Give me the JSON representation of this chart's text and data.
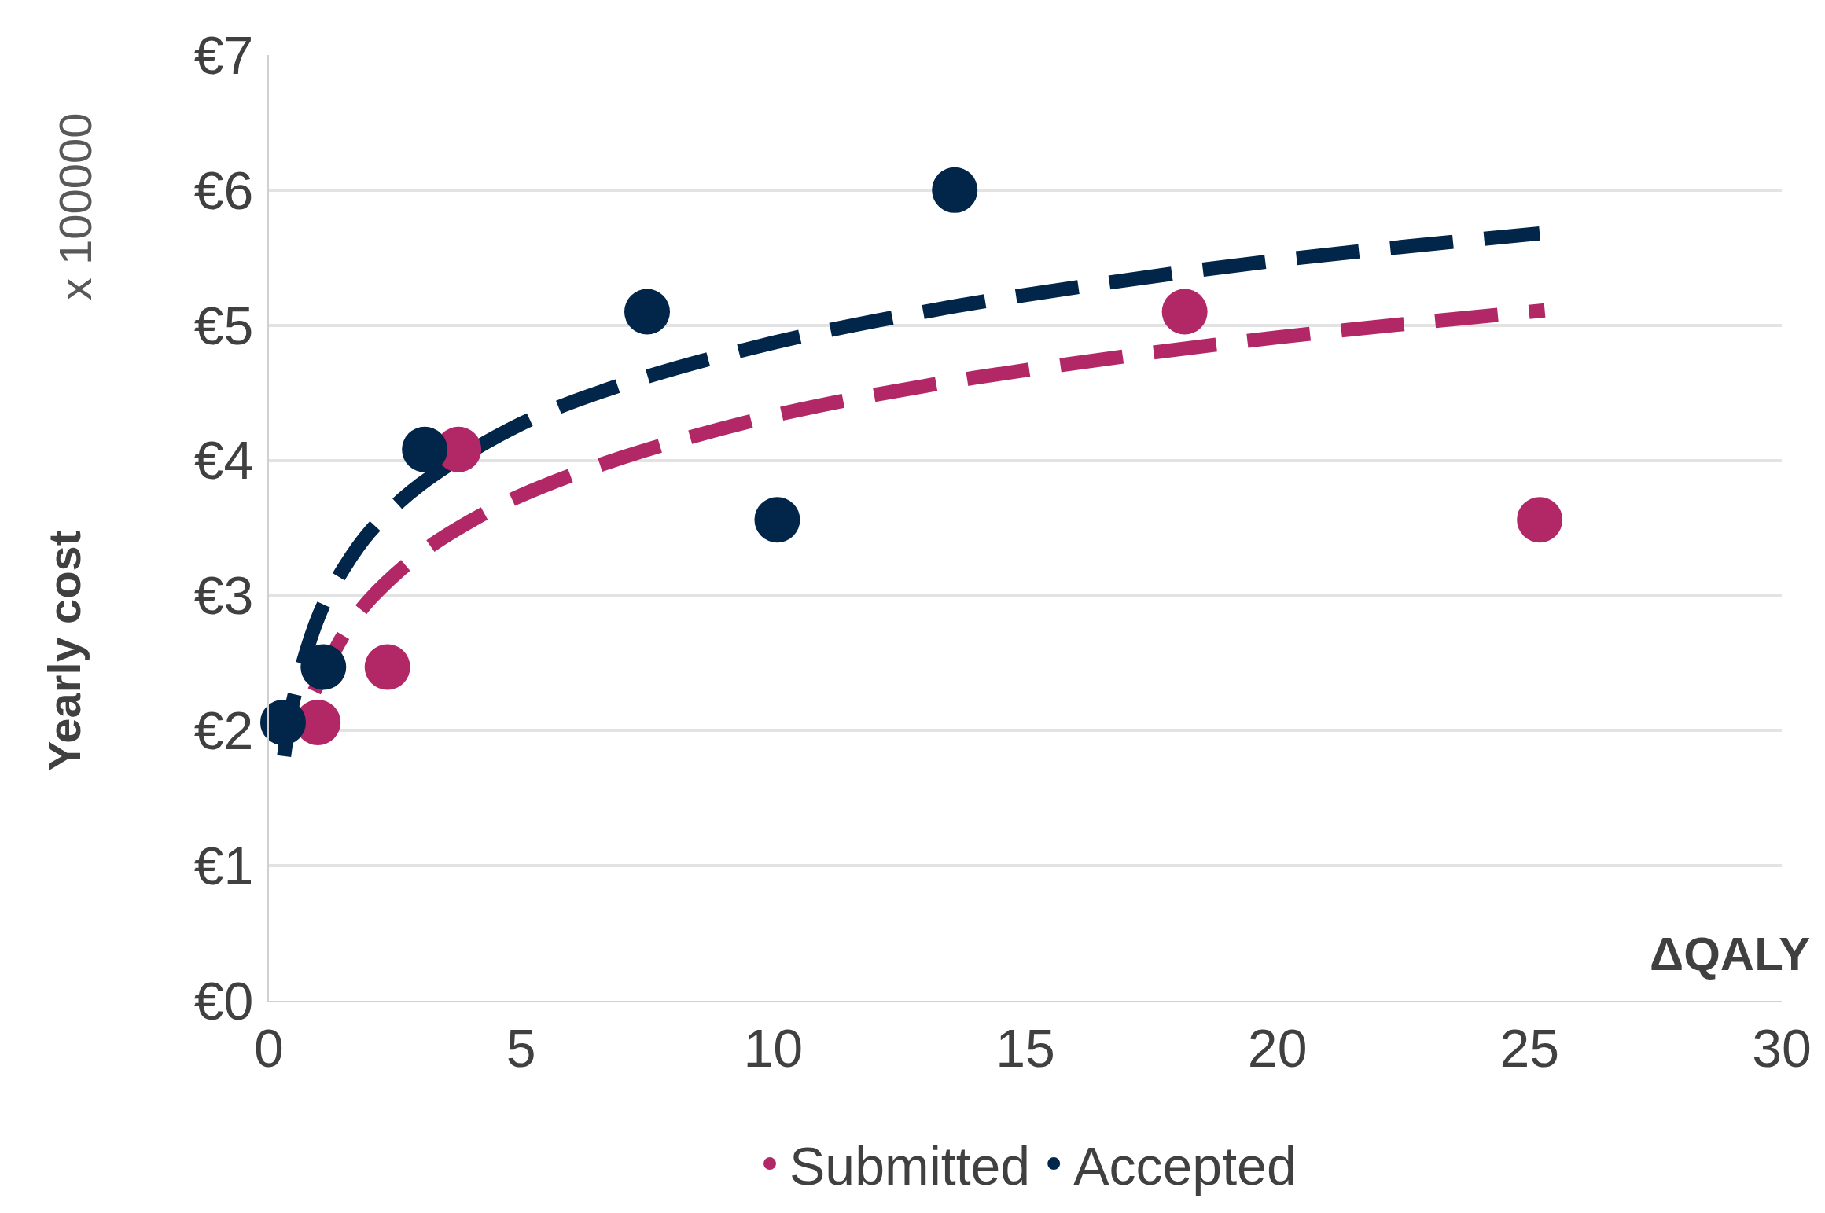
{
  "chart_data": {
    "type": "scatter",
    "xlabel": "ΔQALY",
    "ylabel": "Yearly cost",
    "annotations": [
      "x 100000"
    ],
    "xlim": [
      0,
      30
    ],
    "xticks": [
      0,
      5,
      10,
      15,
      20,
      25,
      30
    ],
    "ylim": [
      0,
      7
    ],
    "yticks": [
      {
        "value": 0,
        "label": "€0"
      },
      {
        "value": 1,
        "label": "€1"
      },
      {
        "value": 2,
        "label": "€2"
      },
      {
        "value": 3,
        "label": "€3"
      },
      {
        "value": 4,
        "label": "€4"
      },
      {
        "value": 5,
        "label": "€5"
      },
      {
        "value": 6,
        "label": "€6"
      },
      {
        "value": 7,
        "label": "€7"
      }
    ],
    "grid": "y",
    "legend": "bottom",
    "series": [
      {
        "type": "line",
        "color": "#b22867",
        "line_style": "dashed",
        "x": [
          0.9,
          1.5,
          2,
          3,
          4,
          5,
          7,
          10,
          13,
          16,
          20,
          25.3
        ],
        "values": [
          2.29,
          2.72,
          2.97,
          3.31,
          3.55,
          3.74,
          4.02,
          4.33,
          4.55,
          4.72,
          4.91,
          5.11
        ]
      },
      {
        "type": "line",
        "color": "#02254a",
        "line_style": "dashed",
        "x": [
          0.3,
          0.5,
          1,
          1.5,
          2,
          3,
          5,
          7,
          10,
          13,
          16,
          20,
          25.2
        ],
        "values": [
          1.81,
          2.25,
          2.86,
          3.21,
          3.47,
          3.82,
          4.27,
          4.56,
          4.87,
          5.1,
          5.28,
          5.48,
          5.68
        ]
      },
      {
        "name": "Submitted",
        "color": "#b22867",
        "marker": "circle",
        "x": [
          0.97,
          2.35,
          3.76,
          18.16,
          25.2
        ],
        "values": [
          2.06,
          2.47,
          4.08,
          5.1,
          3.56
        ]
      },
      {
        "name": "Accepted",
        "color": "#02254a",
        "marker": "circle",
        "x": [
          0.28,
          1.08,
          3.09,
          7.5,
          10.08,
          13.6
        ],
        "values": [
          2.06,
          2.47,
          4.08,
          5.1,
          3.56,
          6.0
        ]
      }
    ]
  }
}
